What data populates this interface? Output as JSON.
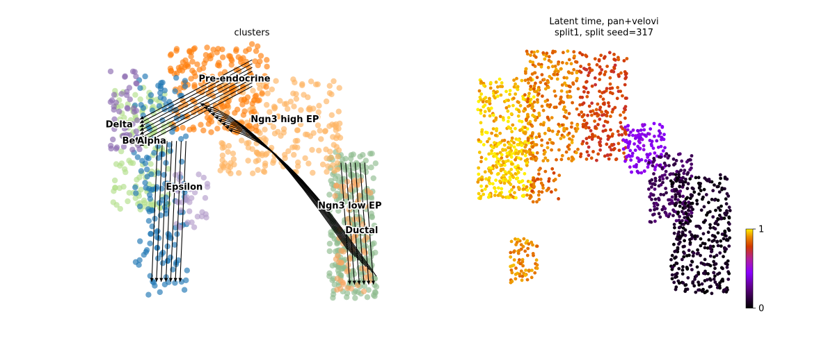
{
  "chart_data": [
    {
      "type": "scatter",
      "title": "clusters",
      "xlabel": "",
      "ylabel": "",
      "legend": "on data",
      "overlay": "velocity streamlines",
      "colors": {
        "Ductal": "#8fbc8f",
        "Ngn3 low EP": "#f4a460",
        "Ngn3 high EP": "#fdb462",
        "Pre-endocrine": "#ff7f0e",
        "Beta": "#b2df8a",
        "Alpha": "#1f77b4",
        "Delta": "#8c6bb1",
        "Epsilon": "#b39ccb"
      },
      "cluster_labels": [
        {
          "name": "Pre-endocrine",
          "x": 0.44,
          "y": 0.84
        },
        {
          "name": "Ngn3 high EP",
          "x": 0.61,
          "y": 0.69
        },
        {
          "name": "Delta",
          "x": 0.05,
          "y": 0.67
        },
        {
          "name": "Beta",
          "x": 0.1,
          "y": 0.61
        },
        {
          "name": "Alpha",
          "x": 0.16,
          "y": 0.61
        },
        {
          "name": "Epsilon",
          "x": 0.27,
          "y": 0.44
        },
        {
          "name": "Ngn3 low EP",
          "x": 0.83,
          "y": 0.37
        },
        {
          "name": "Ductal",
          "x": 0.87,
          "y": 0.28
        }
      ],
      "clusters": [
        {
          "name": "Ductal",
          "x": [
            0.76,
            0.92
          ],
          "y": [
            0.04,
            0.58
          ],
          "density": 260
        },
        {
          "name": "Ngn3 low EP",
          "x": [
            0.78,
            0.9
          ],
          "y": [
            0.06,
            0.48
          ],
          "density": 70
        },
        {
          "name": "Ngn3 high EP",
          "x": [
            0.38,
            0.8
          ],
          "y": [
            0.5,
            0.85
          ],
          "density": 220
        },
        {
          "name": "Pre-endocrine",
          "x": [
            0.22,
            0.55
          ],
          "y": [
            0.65,
            0.98
          ],
          "density": 200
        },
        {
          "name": "Beta",
          "x": [
            0.03,
            0.22
          ],
          "y": [
            0.36,
            0.82
          ],
          "density": 130
        },
        {
          "name": "Alpha",
          "x": [
            0.1,
            0.28
          ],
          "y": [
            0.05,
            0.86
          ],
          "density": 160
        },
        {
          "name": "Delta",
          "x": [
            0.02,
            0.12
          ],
          "y": [
            0.58,
            0.88
          ],
          "density": 50
        },
        {
          "name": "Epsilon",
          "x": [
            0.24,
            0.35
          ],
          "y": [
            0.3,
            0.5
          ],
          "density": 35
        }
      ]
    },
    {
      "type": "scatter",
      "title": "Latent time, pan+velovi",
      "subtitle": "split1, split seed=317",
      "xlabel": "",
      "ylabel": "",
      "color_by": "latent time",
      "colormap": "gnuplot",
      "colorbar": {
        "min": 0,
        "max": 1,
        "ticks": [
          0,
          1
        ]
      },
      "regions": [
        {
          "x": [
            0.03,
            0.24
          ],
          "y": [
            0.4,
            0.88
          ],
          "value": 0.95,
          "count": 320
        },
        {
          "x": [
            0.07,
            0.2
          ],
          "y": [
            0.4,
            0.62
          ],
          "value": 0.99,
          "count": 80
        },
        {
          "x": [
            0.2,
            0.4
          ],
          "y": [
            0.55,
            0.99
          ],
          "value": 0.88,
          "count": 260
        },
        {
          "x": [
            0.4,
            0.58
          ],
          "y": [
            0.55,
            0.99
          ],
          "value": 0.78,
          "count": 220
        },
        {
          "x": [
            0.22,
            0.33
          ],
          "y": [
            0.38,
            0.52
          ],
          "value": 0.84,
          "count": 40
        },
        {
          "x": [
            0.15,
            0.25
          ],
          "y": [
            0.06,
            0.24
          ],
          "value": 0.9,
          "count": 70
        },
        {
          "x": [
            0.56,
            0.72
          ],
          "y": [
            0.5,
            0.7
          ],
          "value": 0.45,
          "count": 120
        },
        {
          "x": [
            0.66,
            0.82
          ],
          "y": [
            0.3,
            0.58
          ],
          "value": 0.18,
          "count": 150
        },
        {
          "x": [
            0.74,
            0.96
          ],
          "y": [
            0.02,
            0.5
          ],
          "value": 0.06,
          "count": 380
        }
      ]
    }
  ]
}
